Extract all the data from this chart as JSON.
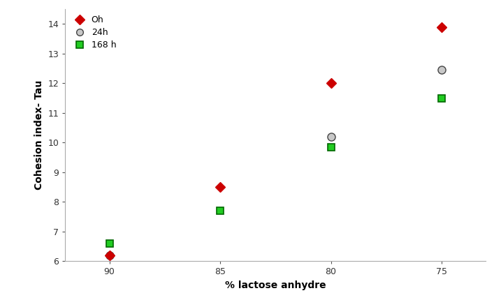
{
  "series": {
    "0h": {
      "label": "Oh",
      "x": [
        90,
        85,
        80,
        75
      ],
      "y": [
        6.2,
        8.5,
        12.0,
        13.9
      ],
      "color": "#cc0000",
      "marker": "D",
      "markersize": 7,
      "zorder": 5
    },
    "24h": {
      "label": "24h",
      "x": [
        90,
        80,
        75
      ],
      "y": [
        6.2,
        10.2,
        12.45
      ],
      "markerfacecolor": "#c8c8c8",
      "markeredgecolor": "#444444",
      "markeredgewidth": 1.0,
      "marker": "o",
      "markersize": 8,
      "zorder": 4
    },
    "168h": {
      "label": "168 h",
      "x": [
        90,
        85,
        80,
        75
      ],
      "y": [
        6.6,
        7.7,
        9.85,
        11.5
      ],
      "markerfacecolor": "#22cc22",
      "markeredgecolor": "#006600",
      "markeredgewidth": 1.2,
      "marker": "s",
      "markersize": 7,
      "zorder": 3
    }
  },
  "xlabel": "% lactose anhydre",
  "ylabel": "Cohesion index- Tau",
  "xlim": [
    92,
    73
  ],
  "ylim": [
    6.0,
    14.5
  ],
  "yticks": [
    6,
    7,
    8,
    9,
    10,
    11,
    12,
    13,
    14
  ],
  "xticks": [
    90,
    85,
    80,
    75
  ],
  "background_color": "#ffffff",
  "tick_fontsize": 9,
  "label_fontsize": 10,
  "legend_fontsize": 9
}
